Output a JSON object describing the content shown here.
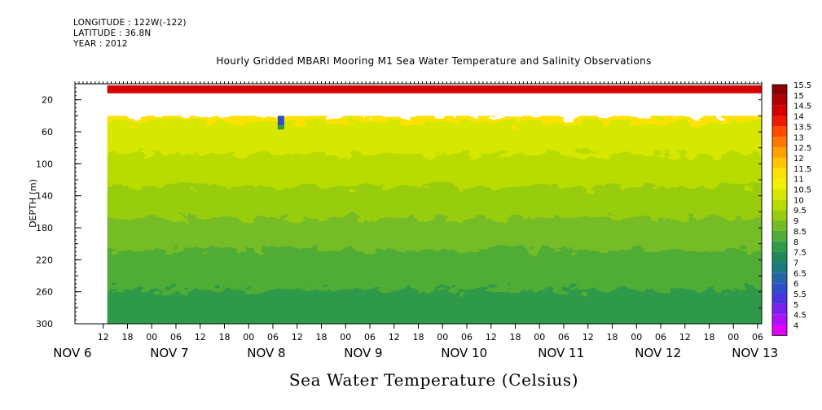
{
  "header": {
    "longitude": "LONGITUDE : 122W(-122)",
    "latitude": "LATITUDE : 36.8N",
    "year": "YEAR : 2012"
  },
  "chart_data": {
    "type": "heatmap",
    "title": "Hourly Gridded MBARI Mooring M1 Sea Water Temperature and Salinity Observations",
    "xlabel": "Sea Water Temperature (Celsius)",
    "ylabel": "DEPTH (m)",
    "x_hour_ticks": [
      "12",
      "18",
      "00",
      "06",
      "12",
      "18",
      "00",
      "06",
      "12",
      "18",
      "00",
      "06",
      "12",
      "18",
      "00",
      "06",
      "12",
      "18",
      "00",
      "06",
      "12",
      "18",
      "00",
      "06",
      "12",
      "18",
      "00",
      "06"
    ],
    "x_day_labels": [
      "NOV  6",
      "NOV  7",
      "NOV  8",
      "NOV  9",
      "NOV 10",
      "NOV 11",
      "NOV 12",
      "NOV 13"
    ],
    "xlim_hours_from_nov6_00": [
      5,
      175
    ],
    "data_start_hours_from_nov6_00": 13,
    "y_ticks": [
      20,
      60,
      100,
      140,
      180,
      220,
      260,
      300
    ],
    "ylim": [
      300,
      0
    ],
    "colorbar": {
      "labels": [
        "15.5",
        "15",
        "14.5",
        "14",
        "13.5",
        "13",
        "12.5",
        "12",
        "11.5",
        "11",
        "10.5",
        "10",
        "9.5",
        "9",
        "8.5",
        "8",
        "7.5",
        "7",
        "6.5",
        "6",
        "5.5",
        "5",
        "4.5",
        "4"
      ],
      "colors": [
        "#8b0000",
        "#b00000",
        "#d40000",
        "#ee1a00",
        "#ff4a00",
        "#ff7800",
        "#ffa200",
        "#ffc400",
        "#ffe100",
        "#f3f000",
        "#d7e800",
        "#b9dc00",
        "#98cd10",
        "#74bc26",
        "#50ac36",
        "#2f9a48",
        "#1f8758",
        "#1b7a80",
        "#2464a8",
        "#2f4ccc",
        "#4b34e0",
        "#7a20ee",
        "#b010f8",
        "#e000ff"
      ]
    },
    "depth_profile": [
      {
        "depth_range": [
          2,
          12
        ],
        "temp_c": 14.5
      },
      {
        "depth_range": [
          12,
          40
        ],
        "temp_c": null
      },
      {
        "depth_range": [
          40,
          60
        ],
        "temp_c": 11.5
      },
      {
        "depth_range": [
          60,
          100
        ],
        "temp_c": 10.5
      },
      {
        "depth_range": [
          100,
          140
        ],
        "temp_c": 10.0
      },
      {
        "depth_range": [
          140,
          180
        ],
        "temp_c": 9.5
      },
      {
        "depth_range": [
          180,
          220
        ],
        "temp_c": 9.0
      },
      {
        "depth_range": [
          220,
          270
        ],
        "temp_c": 8.5
      },
      {
        "depth_range": [
          270,
          300
        ],
        "temp_c": 8.0
      }
    ],
    "anomaly": {
      "hours_from_nov6_00": 56,
      "depth_range": [
        40,
        52
      ],
      "temp_c": 6.0
    }
  }
}
